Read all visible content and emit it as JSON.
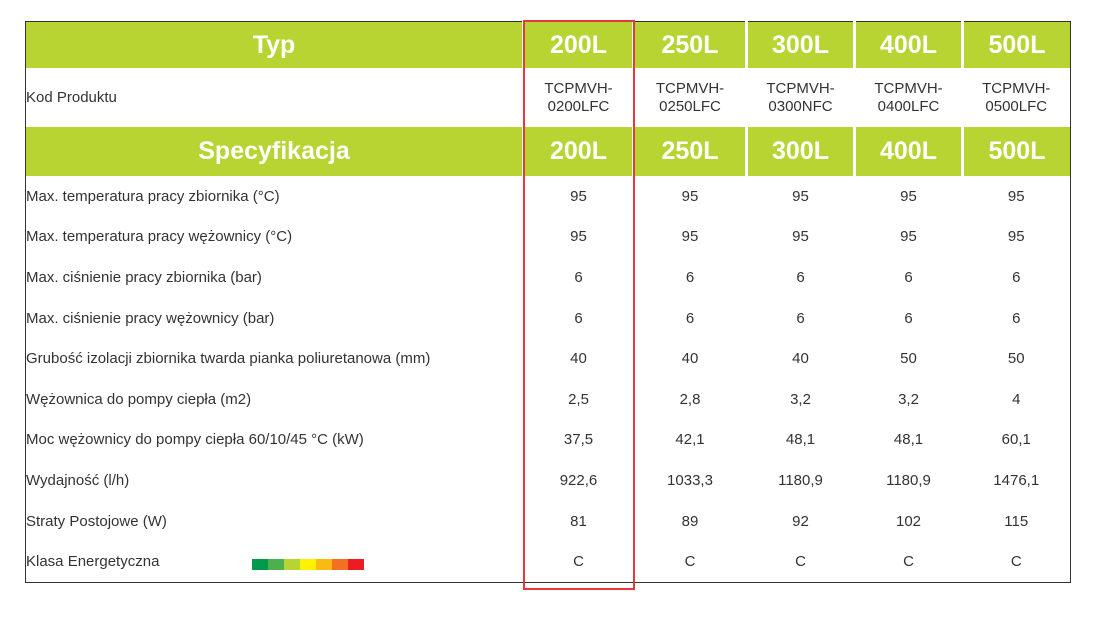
{
  "header": {
    "typ_label": "Typ",
    "spec_label": "Specyfikacja",
    "sizes": [
      "200L",
      "250L",
      "300L",
      "400L",
      "500L"
    ]
  },
  "product_code": {
    "label": "Kod Produktu",
    "codes": [
      [
        "TCPMVH-",
        "0200LFC"
      ],
      [
        "TCPMVH-",
        "0250LFC"
      ],
      [
        "TCPMVH-",
        "0300NFC"
      ],
      [
        "TCPMVH-",
        "0400LFC"
      ],
      [
        "TCPMVH-",
        "0500LFC"
      ]
    ]
  },
  "rows": [
    {
      "label": "Max. temperatura pracy zbiornika (°C)",
      "values": [
        "95",
        "95",
        "95",
        "95",
        "95"
      ]
    },
    {
      "label": "Max. temperatura pracy wężownicy (°C)",
      "values": [
        "95",
        "95",
        "95",
        "95",
        "95"
      ]
    },
    {
      "label": "Max. ciśnienie pracy zbiornika (bar)",
      "values": [
        "6",
        "6",
        "6",
        "6",
        "6"
      ]
    },
    {
      "label": "Max. ciśnienie pracy wężownicy (bar)",
      "values": [
        "6",
        "6",
        "6",
        "6",
        "6"
      ]
    },
    {
      "label": "Grubość izolacji zbiornika twarda pianka poliuretanowa  (mm)",
      "values": [
        "40",
        "40",
        "40",
        "50",
        "50"
      ]
    },
    {
      "label": "Wężownica do pompy ciepła (m2)",
      "values": [
        "2,5",
        "2,8",
        "3,2",
        "3,2",
        "4"
      ]
    },
    {
      "label": "Moc wężownicy do pompy ciepła 60/10/45 °C (kW)",
      "values": [
        "37,5",
        "42,1",
        "48,1",
        "48,1",
        "60,1"
      ]
    },
    {
      "label": "Wydajność (l/h)",
      "values": [
        "922,6",
        "1033,3",
        "1180,9",
        "1180,9",
        "1476,1"
      ]
    },
    {
      "label": "Straty Postojowe (W)",
      "values": [
        "81",
        "89",
        "92",
        "102",
        "115"
      ]
    },
    {
      "label": "Klasa Energetyczna",
      "values": [
        "C",
        "C",
        "C",
        "C",
        "C"
      ]
    }
  ],
  "energy_scale_colors": [
    "#009a4d",
    "#4cb04f",
    "#b8d433",
    "#fff200",
    "#fbb914",
    "#f37021",
    "#ed1c24"
  ],
  "colors": {
    "header_green": "#b8d433",
    "highlight_red": "#e8383d"
  }
}
